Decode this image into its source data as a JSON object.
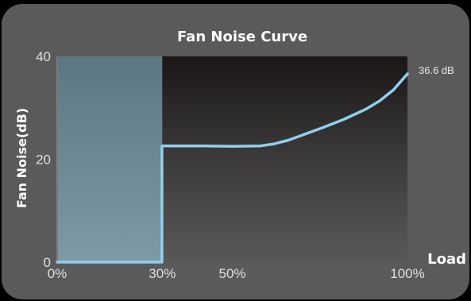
{
  "chart_data": {
    "type": "line",
    "title": "Fan Noise Curve",
    "ylabel": "Fan Noise(dB)",
    "xlabel": "Load",
    "xlim": [
      0,
      100
    ],
    "ylim": [
      0,
      40
    ],
    "x_ticks": [
      "0%",
      "30%",
      "50%",
      "100%"
    ],
    "y_ticks": [
      "0",
      "20",
      "40"
    ],
    "series": [
      {
        "x": [
          0,
          29.9,
          29.9,
          30,
          40,
          50,
          58,
          62,
          66,
          70,
          76,
          82,
          88,
          92,
          96,
          100
        ],
        "y": [
          0,
          0,
          22.5,
          22.6,
          22.6,
          22.5,
          22.6,
          23.0,
          23.7,
          24.7,
          26.2,
          27.8,
          29.7,
          31.3,
          33.5,
          36.6
        ]
      }
    ],
    "end_label": "36.6 dB",
    "shaded_region": {
      "x_start": 0,
      "x_end": 30,
      "color": "#7aa1b0"
    },
    "line_color": "#8fd0ef",
    "background_color": "#5b5a5a"
  }
}
